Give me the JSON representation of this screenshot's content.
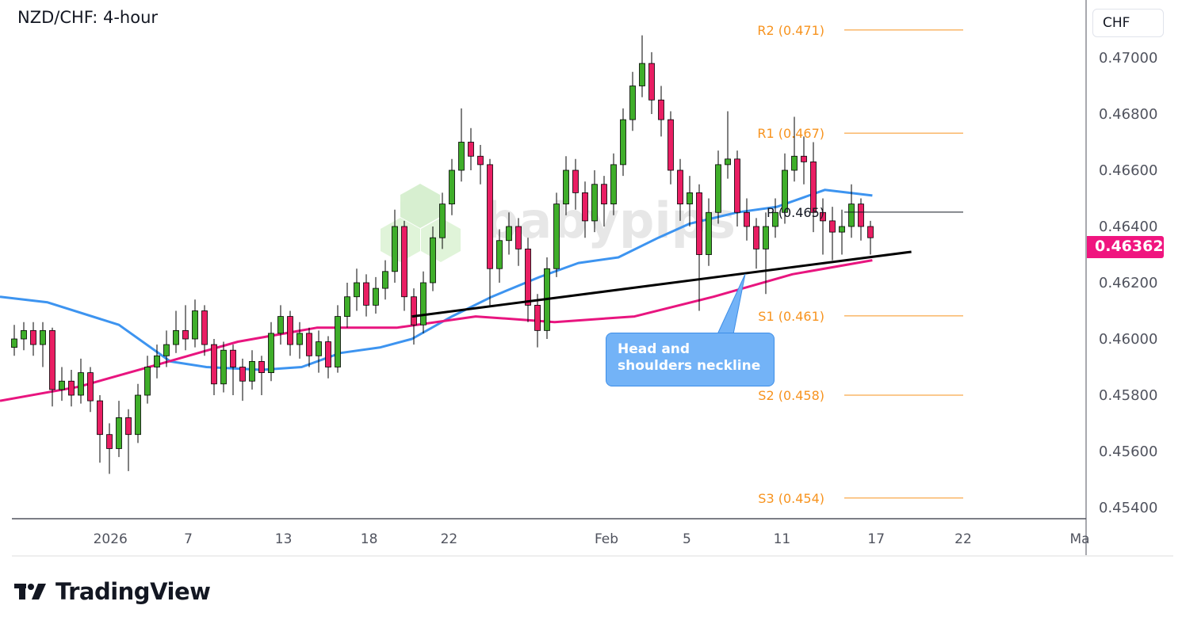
{
  "header": {
    "title": "NZD/CHF: 4-hour",
    "currency": "CHF",
    "current_price": "0.46362"
  },
  "annotation": {
    "text": "Head and shoulders neckline"
  },
  "watermark": {
    "text": "babypips"
  },
  "branding": {
    "name": "TradingView"
  },
  "colors": {
    "up": "#3fae2a",
    "down": "#e91e63",
    "ma_fast": "#3d94f0",
    "ma_slow": "#e8157f",
    "pivot": "#f7931e",
    "pivot_p": "#131722",
    "neckline": "#000000",
    "price_tag": "#f0157f"
  },
  "chart_data": {
    "type": "candlestick",
    "title": "NZD/CHF: 4-hour",
    "ylim": [
      0.453,
      0.472
    ],
    "y_ticks": [
      "0.47000",
      "0.46800",
      "0.46600",
      "0.46400",
      "0.46200",
      "0.46000",
      "0.45800",
      "0.45600",
      "0.45400"
    ],
    "x_ticks": [
      {
        "label": "2026",
        "index": 10.1
      },
      {
        "label": "7",
        "index": 18.3
      },
      {
        "label": "13",
        "index": 28.3
      },
      {
        "label": "18",
        "index": 37.3
      },
      {
        "label": "22",
        "index": 45.7
      },
      {
        "label": "Feb",
        "index": 62.25
      },
      {
        "label": "5",
        "index": 70.7
      },
      {
        "label": "11",
        "index": 80.7
      },
      {
        "label": "17",
        "index": 90.6
      },
      {
        "label": "22",
        "index": 99.75
      },
      {
        "label": "Ma",
        "index": 112
      }
    ],
    "candles_ohlc": [
      [
        0.4597,
        0.4605,
        0.4594,
        0.46
      ],
      [
        0.46,
        0.4606,
        0.4596,
        0.4603
      ],
      [
        0.4603,
        0.4606,
        0.4594,
        0.4598
      ],
      [
        0.4598,
        0.4606,
        0.459,
        0.4603
      ],
      [
        0.4603,
        0.4604,
        0.4576,
        0.4582
      ],
      [
        0.4582,
        0.459,
        0.4578,
        0.4585
      ],
      [
        0.4585,
        0.4589,
        0.4576,
        0.458
      ],
      [
        0.458,
        0.4593,
        0.4577,
        0.4588
      ],
      [
        0.4588,
        0.459,
        0.4574,
        0.4578
      ],
      [
        0.4578,
        0.458,
        0.4556,
        0.4566
      ],
      [
        0.4566,
        0.457,
        0.4552,
        0.4561
      ],
      [
        0.4561,
        0.4578,
        0.4558,
        0.4572
      ],
      [
        0.4572,
        0.4575,
        0.4553,
        0.4566
      ],
      [
        0.4566,
        0.4584,
        0.4563,
        0.458
      ],
      [
        0.458,
        0.4594,
        0.4577,
        0.459
      ],
      [
        0.459,
        0.4598,
        0.4586,
        0.4594
      ],
      [
        0.4594,
        0.4603,
        0.459,
        0.4598
      ],
      [
        0.4598,
        0.461,
        0.4595,
        0.4603
      ],
      [
        0.4603,
        0.4612,
        0.4596,
        0.46
      ],
      [
        0.46,
        0.4614,
        0.4597,
        0.461
      ],
      [
        0.461,
        0.4612,
        0.4594,
        0.4598
      ],
      [
        0.4598,
        0.46,
        0.458,
        0.4584
      ],
      [
        0.4584,
        0.4599,
        0.4581,
        0.4596
      ],
      [
        0.4596,
        0.4598,
        0.458,
        0.459
      ],
      [
        0.459,
        0.4593,
        0.4578,
        0.4585
      ],
      [
        0.4585,
        0.4596,
        0.4582,
        0.4592
      ],
      [
        0.4592,
        0.4594,
        0.458,
        0.4588
      ],
      [
        0.4588,
        0.4606,
        0.4585,
        0.4602
      ],
      [
        0.4602,
        0.4612,
        0.4598,
        0.4608
      ],
      [
        0.4608,
        0.461,
        0.4594,
        0.4598
      ],
      [
        0.4598,
        0.4606,
        0.4593,
        0.4602
      ],
      [
        0.4602,
        0.4604,
        0.459,
        0.4594
      ],
      [
        0.4594,
        0.4603,
        0.4588,
        0.4599
      ],
      [
        0.4599,
        0.4601,
        0.4586,
        0.459
      ],
      [
        0.459,
        0.4612,
        0.4588,
        0.4608
      ],
      [
        0.4608,
        0.462,
        0.4604,
        0.4615
      ],
      [
        0.4615,
        0.4625,
        0.461,
        0.462
      ],
      [
        0.462,
        0.4623,
        0.4608,
        0.4612
      ],
      [
        0.4612,
        0.4622,
        0.4609,
        0.4618
      ],
      [
        0.4618,
        0.4628,
        0.4614,
        0.4624
      ],
      [
        0.4624,
        0.4646,
        0.462,
        0.464
      ],
      [
        0.464,
        0.4642,
        0.461,
        0.4615
      ],
      [
        0.4615,
        0.4618,
        0.4598,
        0.4605
      ],
      [
        0.4605,
        0.4624,
        0.4602,
        0.462
      ],
      [
        0.462,
        0.464,
        0.4617,
        0.4636
      ],
      [
        0.4636,
        0.4652,
        0.4632,
        0.4648
      ],
      [
        0.4648,
        0.4664,
        0.4644,
        0.466
      ],
      [
        0.466,
        0.4682,
        0.4656,
        0.467
      ],
      [
        0.467,
        0.4675,
        0.466,
        0.4665
      ],
      [
        0.4665,
        0.4669,
        0.4655,
        0.4662
      ],
      [
        0.4662,
        0.4664,
        0.4612,
        0.4625
      ],
      [
        0.4625,
        0.4639,
        0.462,
        0.4635
      ],
      [
        0.4635,
        0.4645,
        0.463,
        0.464
      ],
      [
        0.464,
        0.4643,
        0.4626,
        0.4632
      ],
      [
        0.4632,
        0.4636,
        0.4606,
        0.4612
      ],
      [
        0.4612,
        0.4616,
        0.4597,
        0.4603
      ],
      [
        0.4603,
        0.4629,
        0.46,
        0.4625
      ],
      [
        0.4625,
        0.4652,
        0.4622,
        0.4648
      ],
      [
        0.4648,
        0.4665,
        0.4644,
        0.466
      ],
      [
        0.466,
        0.4664,
        0.4646,
        0.4652
      ],
      [
        0.4652,
        0.4656,
        0.4636,
        0.4642
      ],
      [
        0.4642,
        0.466,
        0.4638,
        0.4655
      ],
      [
        0.4655,
        0.4658,
        0.464,
        0.4648
      ],
      [
        0.4648,
        0.4666,
        0.4644,
        0.4662
      ],
      [
        0.4662,
        0.4682,
        0.4658,
        0.4678
      ],
      [
        0.4678,
        0.4695,
        0.4674,
        0.469
      ],
      [
        0.469,
        0.4708,
        0.4686,
        0.4698
      ],
      [
        0.4698,
        0.4702,
        0.468,
        0.4685
      ],
      [
        0.4685,
        0.469,
        0.4672,
        0.4678
      ],
      [
        0.4678,
        0.4681,
        0.4655,
        0.466
      ],
      [
        0.466,
        0.4664,
        0.4642,
        0.4648
      ],
      [
        0.4648,
        0.4658,
        0.464,
        0.4652
      ],
      [
        0.4652,
        0.4655,
        0.461,
        0.463
      ],
      [
        0.463,
        0.465,
        0.4626,
        0.4645
      ],
      [
        0.4645,
        0.4667,
        0.4641,
        0.4662
      ],
      [
        0.4662,
        0.4681,
        0.4657,
        0.4664
      ],
      [
        0.4664,
        0.4667,
        0.464,
        0.4645
      ],
      [
        0.4645,
        0.465,
        0.4635,
        0.464
      ],
      [
        0.464,
        0.4643,
        0.4625,
        0.4632
      ],
      [
        0.4632,
        0.4645,
        0.4616,
        0.464
      ],
      [
        0.464,
        0.465,
        0.4636,
        0.4645
      ],
      [
        0.4645,
        0.4666,
        0.4641,
        0.466
      ],
      [
        0.466,
        0.4679,
        0.4656,
        0.4665
      ],
      [
        0.4665,
        0.4672,
        0.4655,
        0.4663
      ],
      [
        0.4663,
        0.467,
        0.4638,
        0.4645
      ],
      [
        0.4645,
        0.465,
        0.463,
        0.4642
      ],
      [
        0.4642,
        0.4647,
        0.4628,
        0.4638
      ],
      [
        0.4638,
        0.4646,
        0.463,
        0.464
      ],
      [
        0.464,
        0.4655,
        0.4636,
        0.4648
      ],
      [
        0.4648,
        0.465,
        0.4635,
        0.464
      ],
      [
        0.464,
        0.4642,
        0.463,
        0.4636
      ]
    ],
    "moving_averages": [
      {
        "color": "#3d94f0",
        "points": [
          [
            -1.5,
            0.4615
          ],
          [
            3.5,
            0.4613
          ],
          [
            11,
            0.4605
          ],
          [
            16.4,
            0.4592
          ],
          [
            20.2,
            0.459
          ],
          [
            26,
            0.4589
          ],
          [
            30.2,
            0.459
          ],
          [
            34.3,
            0.4595
          ],
          [
            38.5,
            0.4597
          ],
          [
            41.8,
            0.46
          ],
          [
            46,
            0.4608
          ],
          [
            50.2,
            0.4615
          ],
          [
            55.2,
            0.4622
          ],
          [
            59.3,
            0.4627
          ],
          [
            63.5,
            0.4629
          ],
          [
            67.7,
            0.4636
          ],
          [
            71,
            0.4641
          ],
          [
            76,
            0.4645
          ],
          [
            80.2,
            0.4647
          ],
          [
            85.2,
            0.4653
          ],
          [
            90.2,
            0.4651
          ]
        ]
      },
      {
        "color": "#e8157f",
        "points": [
          [
            -1.5,
            0.4578
          ],
          [
            6.8,
            0.4583
          ],
          [
            15.2,
            0.4591
          ],
          [
            23.5,
            0.4599
          ],
          [
            31.8,
            0.4604
          ],
          [
            40.2,
            0.4604
          ],
          [
            48.5,
            0.4608
          ],
          [
            52.7,
            0.4607
          ],
          [
            56.8,
            0.4606
          ],
          [
            65.2,
            0.4608
          ],
          [
            73.5,
            0.4615
          ],
          [
            81.8,
            0.4623
          ],
          [
            90.2,
            0.4628
          ]
        ]
      }
    ],
    "neckline": {
      "from": [
        41.8,
        0.4608
      ],
      "to": [
        94.3,
        0.4631
      ]
    },
    "pivots": [
      {
        "label": "R2 (0.471)",
        "value": 0.47099,
        "kind": "r"
      },
      {
        "label": "R1 (0.467)",
        "value": 0.46732,
        "kind": "r"
      },
      {
        "label": "P (0.465)",
        "value": 0.46451,
        "kind": "p"
      },
      {
        "label": "S1 (0.461)",
        "value": 0.46082,
        "kind": "r"
      },
      {
        "label": "S2 (0.458)",
        "value": 0.458,
        "kind": "r"
      },
      {
        "label": "S3 (0.454)",
        "value": 0.45434,
        "kind": "r"
      }
    ],
    "pivot_span": [
      87.25,
      99.75
    ]
  }
}
